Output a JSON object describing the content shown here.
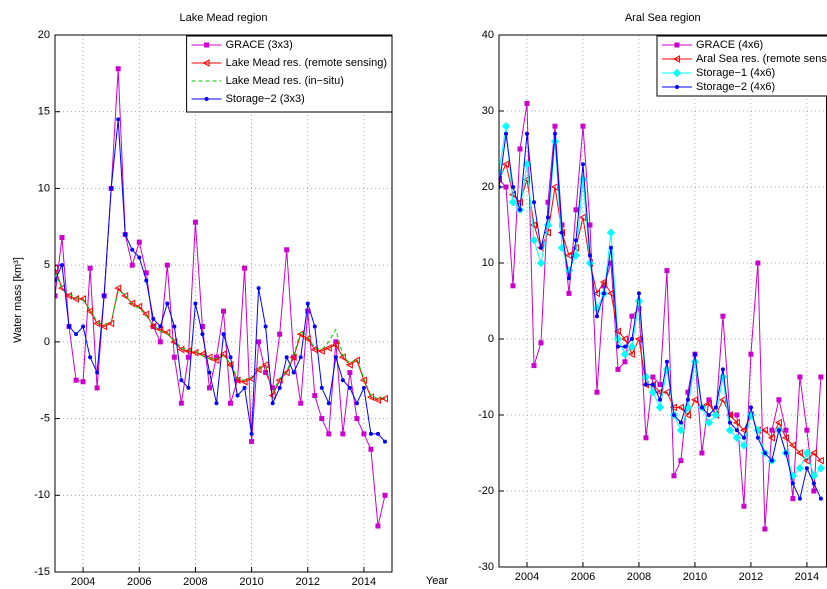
{
  "chart_data": [
    {
      "type": "line",
      "title": "Lake Mead region",
      "ylabel": "Water mass [km³]",
      "xlabel": "Year",
      "x": [
        2003,
        2003.25,
        2003.5,
        2003.75,
        2004,
        2004.25,
        2004.5,
        2004.75,
        2005,
        2005.25,
        2005.5,
        2005.75,
        2006,
        2006.25,
        2006.5,
        2006.75,
        2007,
        2007.25,
        2007.5,
        2007.75,
        2008,
        2008.25,
        2008.5,
        2008.75,
        2009,
        2009.25,
        2009.5,
        2009.75,
        2010,
        2010.25,
        2010.5,
        2010.75,
        2011,
        2011.25,
        2011.5,
        2011.75,
        2012,
        2012.25,
        2012.5,
        2012.75,
        2013,
        2013.25,
        2013.5,
        2013.75,
        2014,
        2014.25,
        2014.5,
        2014.75
      ],
      "series": [
        {
          "name": "GRACE (3x3)",
          "color": "#cc00cc",
          "marker": "square",
          "dashed": false,
          "values": [
            3,
            6.8,
            1,
            -2.5,
            -2.6,
            4.8,
            -3,
            3,
            10,
            17.8,
            7,
            5,
            6.5,
            4.5,
            1,
            0,
            5,
            -1,
            -4,
            -1,
            7.8,
            1,
            -3,
            -1,
            2,
            -4,
            -2.5,
            4.8,
            -6.5,
            0,
            -2,
            -3,
            0.5,
            6,
            -1,
            -4,
            2,
            -3.5,
            -5,
            -6,
            0,
            -6,
            -2,
            -5,
            -6,
            -7,
            -12,
            -10
          ]
        },
        {
          "name": "Lake Mead res. (remote sensing)",
          "color": "#ff0000",
          "marker": "triangle",
          "dashed": false,
          "values": [
            4.8,
            3.5,
            3,
            2.8,
            2.8,
            2,
            1.2,
            1,
            1.2,
            3.5,
            3,
            2.5,
            2.3,
            1.8,
            1,
            0.8,
            0.6,
            0,
            -0.5,
            -0.6,
            -0.7,
            -0.8,
            -1,
            -1.2,
            -0.8,
            -1.5,
            -2.5,
            -2.6,
            -2.4,
            -1.8,
            -1.5,
            -3.5,
            -2.5,
            -2,
            -1,
            0.5,
            0.2,
            -0.5,
            -0.6,
            -0.4,
            -0.2,
            -1,
            -1.5,
            -1.2,
            -2.5,
            -3.6,
            -3.8,
            -3.7
          ]
        },
        {
          "name": "Lake Mead res. (in−situ)",
          "color": "#00cc00",
          "marker": "none",
          "dashed": true,
          "values": [
            4.6,
            3.4,
            3.1,
            2.9,
            2.7,
            2.1,
            1.3,
            1.1,
            1.3,
            3.3,
            3.1,
            2.4,
            2.2,
            1.7,
            1.1,
            0.7,
            0.5,
            0.1,
            -0.4,
            -0.5,
            -0.6,
            -0.9,
            -1.1,
            -1.1,
            -0.9,
            -1.4,
            -2.4,
            -2.5,
            -2.3,
            -1.7,
            -1.6,
            -3.3,
            -2.4,
            -1.9,
            -0.9,
            0.7,
            0.3,
            -0.4,
            -0.5,
            0,
            0.8,
            -0.9,
            -1.4,
            -1.1,
            -2.4,
            -3.5,
            -3.7,
            -3.6
          ]
        },
        {
          "name": "Storage−2 (3x3)",
          "color": "#0000ff",
          "marker": "dot",
          "dashed": false,
          "values": [
            4,
            5,
            1,
            0.5,
            1,
            -1,
            -2,
            3,
            10,
            14.5,
            7,
            6,
            5.5,
            4,
            1.5,
            1,
            2.5,
            1,
            -2.5,
            -3,
            2.5,
            0.5,
            -2,
            -4,
            0.5,
            -1,
            -3.5,
            -3,
            -6,
            3.5,
            1,
            -4,
            -3,
            -1,
            -2,
            -1,
            2.5,
            1,
            -3,
            -4,
            -1,
            -2.5,
            -3,
            -4,
            -3,
            -6,
            -6,
            -6.5
          ]
        }
      ],
      "xlim": [
        2003,
        2015
      ],
      "xticks": [
        2004,
        2006,
        2008,
        2010,
        2012,
        2014
      ],
      "ylim": [
        -15,
        20
      ],
      "yticks": [
        -15,
        -10,
        -5,
        0,
        5,
        10,
        15,
        20
      ],
      "grid": true,
      "legend": "upper right"
    },
    {
      "type": "line",
      "title": "Aral Sea region",
      "x": [
        2003,
        2003.25,
        2003.5,
        2003.75,
        2004,
        2004.25,
        2004.5,
        2004.75,
        2005,
        2005.25,
        2005.5,
        2005.75,
        2006,
        2006.25,
        2006.5,
        2006.75,
        2007,
        2007.25,
        2007.5,
        2007.75,
        2008,
        2008.25,
        2008.5,
        2008.75,
        2009,
        2009.25,
        2009.5,
        2009.75,
        2010,
        2010.25,
        2010.5,
        2010.75,
        2011,
        2011.25,
        2011.5,
        2011.75,
        2012,
        2012.25,
        2012.5,
        2012.75,
        2013,
        2013.25,
        2013.5,
        2013.75,
        2014,
        2014.25,
        2014.5
      ],
      "series": [
        {
          "name": "GRACE (4x6)",
          "color": "#cc00cc",
          "marker": "square",
          "dashed": false,
          "values": [
            21,
            20,
            7,
            25,
            31,
            -3.5,
            -0.5,
            18,
            28,
            15,
            6,
            17,
            28,
            15,
            -7,
            7,
            10,
            -4,
            -3,
            3,
            4,
            -13,
            -5,
            -6,
            9,
            -18,
            -16,
            -7,
            -2,
            -15,
            -8,
            -10,
            3,
            -10,
            -10,
            -22,
            -2,
            10,
            -25,
            -12,
            -8,
            -12,
            -21,
            -5,
            -12,
            -20,
            -5
          ]
        },
        {
          "name": "Aral Sea res. (remote sensing",
          "color": "#ff0000",
          "marker": "triangle",
          "dashed": false,
          "values": [
            21,
            23,
            19,
            18,
            21,
            15,
            12,
            14,
            20,
            14,
            11,
            12,
            16,
            10,
            6,
            7.5,
            6,
            1,
            0,
            -2,
            0,
            -6,
            -6,
            -7,
            -7,
            -9,
            -9,
            -10,
            -8,
            -9,
            -8.5,
            -10,
            -8,
            -10,
            -11,
            -12,
            -10,
            -12,
            -12,
            -13,
            -11,
            -13,
            -14,
            -15,
            -16,
            -15,
            -16
          ]
        },
        {
          "name": "Storage−1 (4x6)",
          "color": "#00ffff",
          "marker": "diamond",
          "dashed": false,
          "values": [
            22,
            28,
            18,
            17,
            23,
            13,
            10,
            15,
            26,
            12,
            9,
            11,
            21,
            10,
            4,
            6,
            14,
            0,
            -2,
            -1,
            5,
            -5,
            -7,
            -9,
            -4,
            -10,
            -12,
            -9,
            -3,
            -9,
            -11,
            -10,
            -5,
            -12,
            -13,
            -14,
            -10,
            -12,
            -15,
            -16,
            -12,
            -15,
            -18,
            -17,
            -15,
            -18,
            -17
          ]
        },
        {
          "name": "Storage−2 (4x6)",
          "color": "#0000ff",
          "marker": "dot",
          "dashed": false,
          "values": [
            20,
            27,
            20,
            17,
            27,
            18,
            12,
            16,
            27,
            14,
            8,
            13,
            23,
            11,
            3,
            6,
            12,
            -1,
            -1,
            0,
            6,
            -6,
            -6,
            -8,
            -3,
            -10,
            -11,
            -8,
            -2,
            -9,
            -10,
            -9,
            -4,
            -11,
            -12,
            -13,
            -9,
            -13,
            -15,
            -16,
            -12,
            -15,
            -19,
            -21,
            -17,
            -19,
            -21
          ]
        }
      ],
      "xlim": [
        2003,
        2014.7
      ],
      "xticks": [
        2004,
        2006,
        2008,
        2010,
        2012,
        2014
      ],
      "ylim": [
        -30,
        40
      ],
      "yticks": [
        -30,
        -20,
        -10,
        0,
        10,
        20,
        30,
        40
      ],
      "grid": true,
      "legend": "upper right"
    }
  ]
}
